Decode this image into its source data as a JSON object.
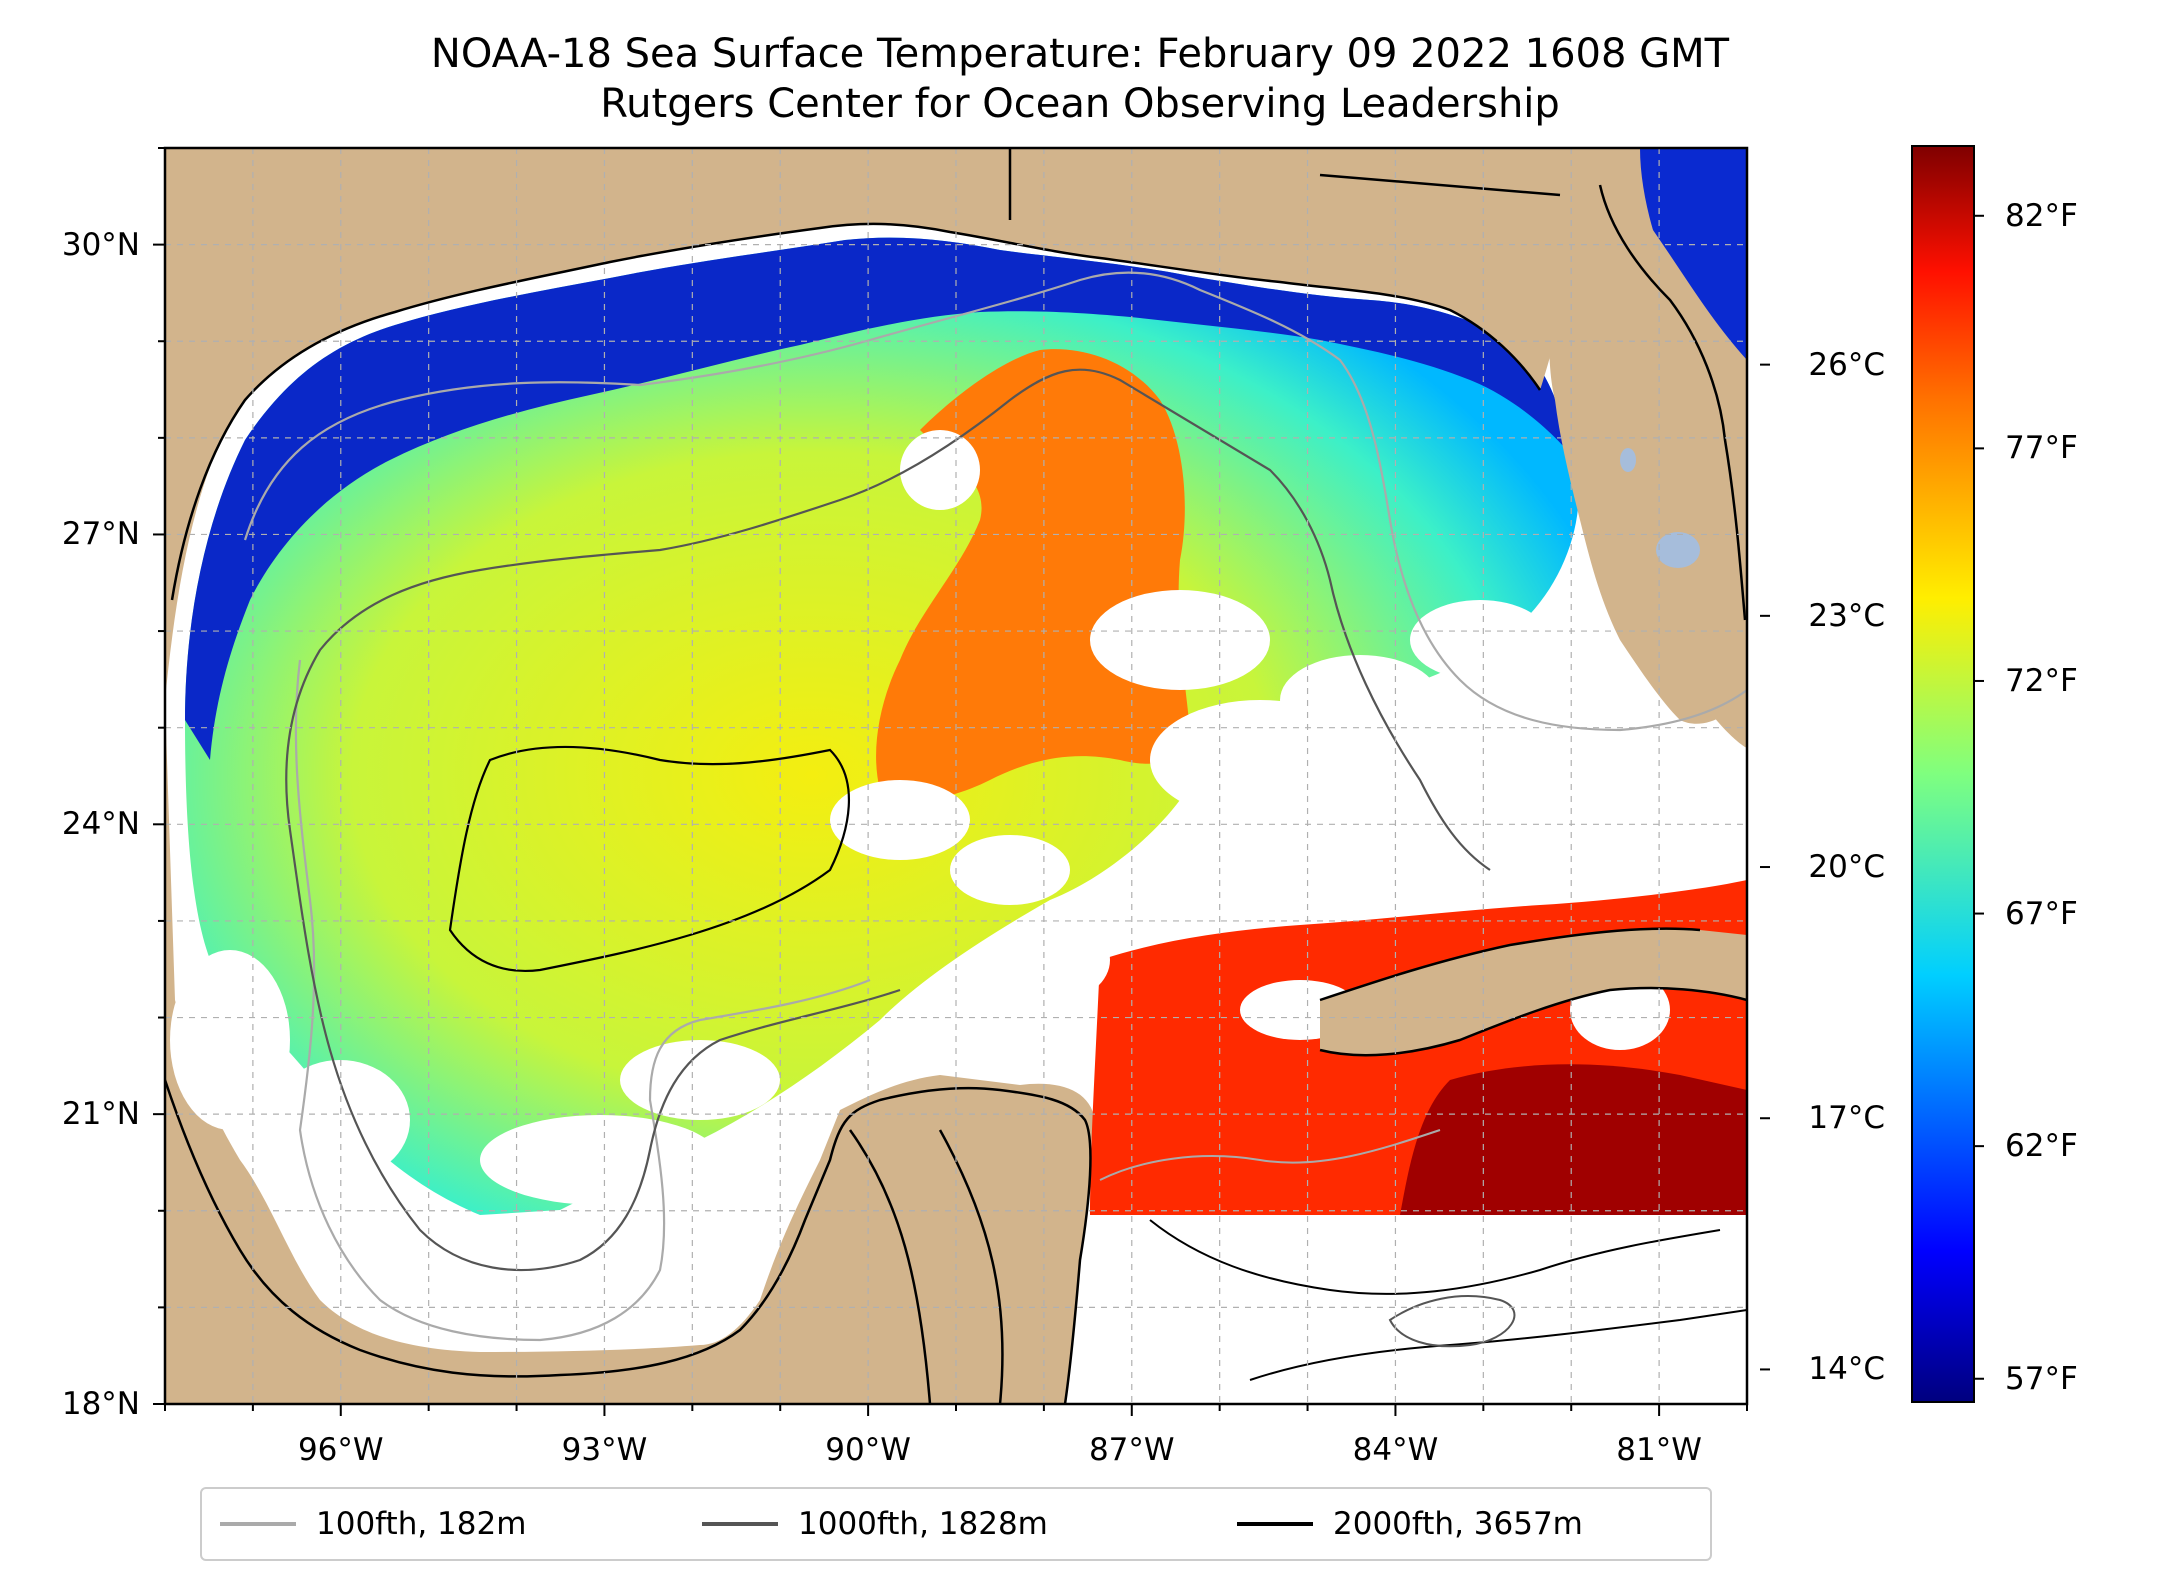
{
  "title": "NOAA-18 Sea Surface Temperature: February 09 2022 1608 GMT",
  "subtitle": "Rutgers Center for Ocean Observing Leadership",
  "colors": {
    "land": "#d2b48c",
    "no_data": "#ffffff",
    "lake": "#a6bddb",
    "contour_100": "#aaaaaa",
    "contour_1000": "#555555",
    "contour_2000": "#000000",
    "grid": "#b0b0b0"
  },
  "map": {
    "lon_range": [
      -98,
      -80
    ],
    "lat_range": [
      18,
      31
    ],
    "lat_ticks": [
      {
        "value": 30,
        "label": "30°N"
      },
      {
        "value": 27,
        "label": "27°N"
      },
      {
        "value": 24,
        "label": "24°N"
      },
      {
        "value": 21,
        "label": "21°N"
      },
      {
        "value": 18,
        "label": "18°N"
      }
    ],
    "lon_ticks": [
      {
        "value": -96,
        "label": "96°W"
      },
      {
        "value": -93,
        "label": "93°W"
      },
      {
        "value": -90,
        "label": "90°W"
      },
      {
        "value": -87,
        "label": "87°W"
      },
      {
        "value": -84,
        "label": "84°W"
      },
      {
        "value": -81,
        "label": "81°W"
      }
    ],
    "grid": true
  },
  "colorbar": {
    "colormap": "jet",
    "range_f": [
      56.5,
      83.5
    ],
    "celsius_labels": [
      {
        "value": 26,
        "label": "26°C"
      },
      {
        "value": 23,
        "label": "23°C"
      },
      {
        "value": 20,
        "label": "20°C"
      },
      {
        "value": 17,
        "label": "17°C"
      },
      {
        "value": 14,
        "label": "14°C"
      }
    ],
    "fahrenheit_labels": [
      {
        "value": 82,
        "label": "82°F"
      },
      {
        "value": 77,
        "label": "77°F"
      },
      {
        "value": 72,
        "label": "72°F"
      },
      {
        "value": 67,
        "label": "67°F"
      },
      {
        "value": 62,
        "label": "62°F"
      },
      {
        "value": 57,
        "label": "57°F"
      }
    ]
  },
  "legend": {
    "placement": "bottom",
    "items": [
      {
        "label": "100fth, 182m",
        "color": "#aaaaaa"
      },
      {
        "label": "1000fth, 1828m",
        "color": "#555555"
      },
      {
        "label": "2000fth, 3657m",
        "color": "#000000"
      }
    ]
  }
}
